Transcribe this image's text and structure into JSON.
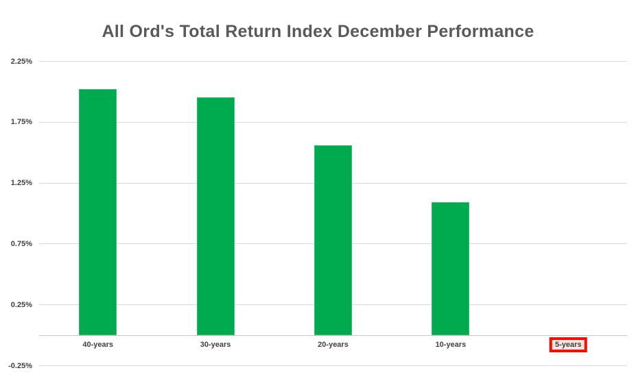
{
  "chart_data": {
    "type": "bar",
    "title": "All Ord's Total Return Index December Performance",
    "categories": [
      "40-years",
      "30-years",
      "20-years",
      "10-years",
      "5-years"
    ],
    "values": [
      2.02,
      1.95,
      1.56,
      1.09,
      0.0
    ],
    "unit": "%",
    "xlabel": "",
    "ylabel": "",
    "ylim": [
      -0.25,
      2.25
    ],
    "y_tick_labels": [
      "2.25%",
      "1.75%",
      "1.25%",
      "0.75%",
      "0.25%",
      "-0.25%"
    ],
    "y_tick_values": [
      2.25,
      1.75,
      1.25,
      0.75,
      0.25,
      -0.25
    ],
    "grid": true,
    "legend": false,
    "highlighted_category": "5-years",
    "bar_color": "#00AB4F",
    "highlight_border_color": "#F50D00",
    "title_color": "#595959",
    "tick_color": "#404040",
    "gridline_color": "#D9D9D9"
  }
}
